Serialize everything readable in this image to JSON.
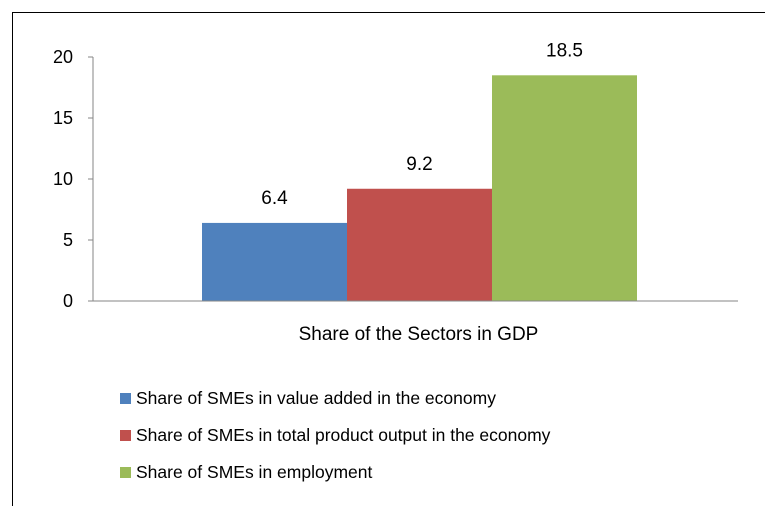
{
  "chart_data": {
    "type": "bar",
    "categories": [
      "Share of the Sectors in GDP"
    ],
    "series": [
      {
        "name": "Share of SMEs in value added in the economy",
        "values": [
          6.4
        ],
        "color": "#4f81bd"
      },
      {
        "name": "Share of SMEs in total product output in the economy",
        "values": [
          9.2
        ],
        "color": "#c0504d"
      },
      {
        "name": "Share of SMEs in employment",
        "values": [
          18.5
        ],
        "color": "#9bbb59"
      }
    ],
    "data_labels": [
      "6.4",
      "9.2",
      "18.5"
    ],
    "y_ticks": [
      "0",
      "5",
      "10",
      "15",
      "20"
    ],
    "ylim": [
      0,
      20
    ],
    "grid": false,
    "legend_position": "bottom"
  }
}
